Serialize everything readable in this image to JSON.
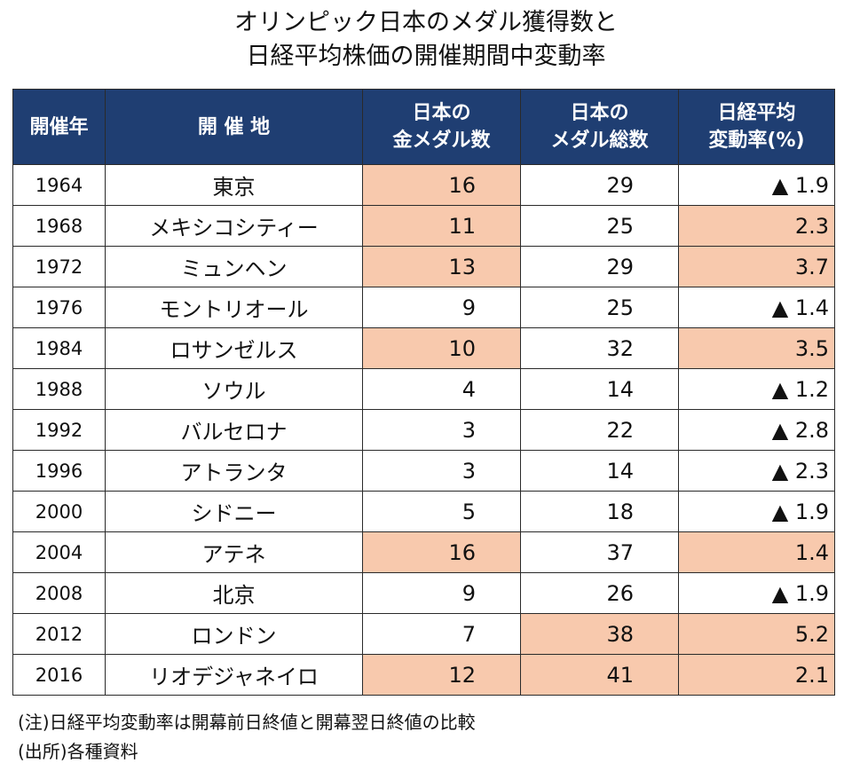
{
  "title": {
    "line1": "オリンピック日本のメダル獲得数と",
    "line2": "日経平均株価の開催期間中変動率"
  },
  "chart_data": {
    "type": "table",
    "columns": [
      {
        "key": "year",
        "label_lines": [
          "開催年"
        ]
      },
      {
        "key": "venue",
        "label_lines": [
          "開 催 地"
        ]
      },
      {
        "key": "gold",
        "label_lines": [
          "日本の",
          "金メダル数"
        ]
      },
      {
        "key": "total",
        "label_lines": [
          "日本の",
          "メダル総数"
        ]
      },
      {
        "key": "rate",
        "label_lines": [
          "日経平均",
          "変動率(%)"
        ]
      }
    ],
    "rows": [
      {
        "year": "1964",
        "venue": "東京",
        "gold": 16,
        "total": 29,
        "rate": "▲ 1.9",
        "hl_gold": true,
        "hl_total": false,
        "hl_rate": false
      },
      {
        "year": "1968",
        "venue": "メキシコシティー",
        "gold": 11,
        "total": 25,
        "rate": "2.3",
        "hl_gold": true,
        "hl_total": false,
        "hl_rate": true
      },
      {
        "year": "1972",
        "venue": "ミュンヘン",
        "gold": 13,
        "total": 29,
        "rate": "3.7",
        "hl_gold": true,
        "hl_total": false,
        "hl_rate": true
      },
      {
        "year": "1976",
        "venue": "モントリオール",
        "gold": 9,
        "total": 25,
        "rate": "▲ 1.4",
        "hl_gold": false,
        "hl_total": false,
        "hl_rate": false
      },
      {
        "year": "1984",
        "venue": "ロサンゼルス",
        "gold": 10,
        "total": 32,
        "rate": "3.5",
        "hl_gold": true,
        "hl_total": false,
        "hl_rate": true
      },
      {
        "year": "1988",
        "venue": "ソウル",
        "gold": 4,
        "total": 14,
        "rate": "▲ 1.2",
        "hl_gold": false,
        "hl_total": false,
        "hl_rate": false
      },
      {
        "year": "1992",
        "venue": "バルセロナ",
        "gold": 3,
        "total": 22,
        "rate": "▲ 2.8",
        "hl_gold": false,
        "hl_total": false,
        "hl_rate": false
      },
      {
        "year": "1996",
        "venue": "アトランタ",
        "gold": 3,
        "total": 14,
        "rate": "▲ 2.3",
        "hl_gold": false,
        "hl_total": false,
        "hl_rate": false
      },
      {
        "year": "2000",
        "venue": "シドニー",
        "gold": 5,
        "total": 18,
        "rate": "▲ 1.9",
        "hl_gold": false,
        "hl_total": false,
        "hl_rate": false
      },
      {
        "year": "2004",
        "venue": "アテネ",
        "gold": 16,
        "total": 37,
        "rate": "1.4",
        "hl_gold": true,
        "hl_total": false,
        "hl_rate": true
      },
      {
        "year": "2008",
        "venue": "北京",
        "gold": 9,
        "total": 26,
        "rate": "▲ 1.9",
        "hl_gold": false,
        "hl_total": false,
        "hl_rate": false
      },
      {
        "year": "2012",
        "venue": "ロンドン",
        "gold": 7,
        "total": 38,
        "rate": "5.2",
        "hl_gold": false,
        "hl_total": true,
        "hl_rate": true
      },
      {
        "year": "2016",
        "venue": "リオデジャネイロ",
        "gold": 12,
        "total": 41,
        "rate": "2.1",
        "hl_gold": true,
        "hl_total": true,
        "hl_rate": true
      }
    ]
  },
  "colors": {
    "header_bg": "#1f3e72",
    "highlight": "#f8c9ad"
  },
  "notes": {
    "note1": "(注)日経平均変動率は開幕前日終値と開幕翌日終値の比較",
    "note2": "(出所)各種資料"
  }
}
